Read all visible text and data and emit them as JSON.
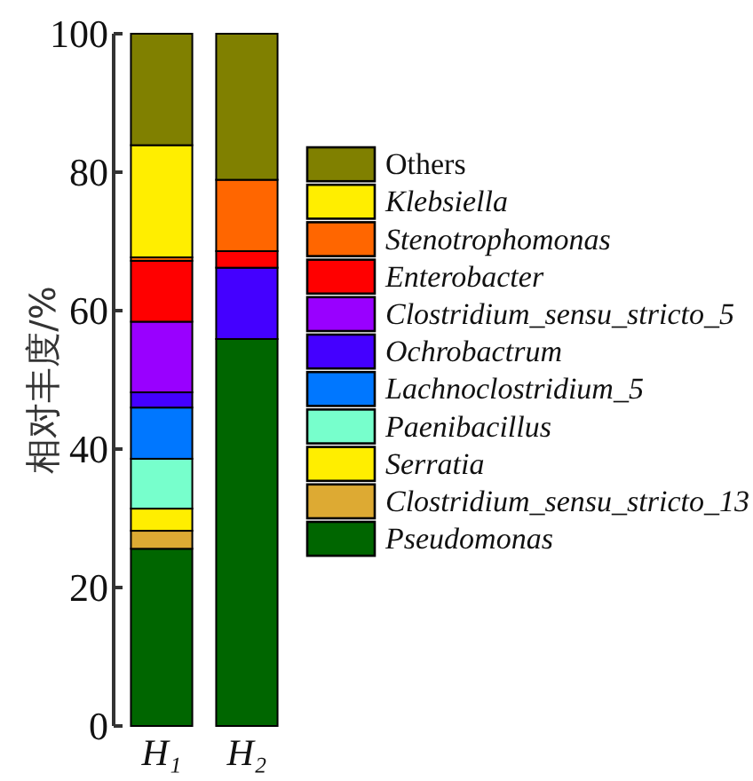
{
  "chart_data": {
    "type": "bar",
    "stacked": true,
    "ylabel": "相对丰度/%",
    "categories": [
      "H₁",
      "H₂"
    ],
    "ylim": [
      0,
      100
    ],
    "yticks": [
      0,
      20,
      40,
      60,
      80,
      100
    ],
    "legend": "right",
    "grid": false,
    "series": [
      {
        "name": "Pseudomonas",
        "color": "#006600",
        "values": [
          25.6,
          55.9
        ]
      },
      {
        "name": "Clostridium_sensu_stricto_13",
        "color": "#ddaa33",
        "values": [
          2.6,
          0
        ]
      },
      {
        "name": "Serratia",
        "color": "#ffee00",
        "values": [
          3.2,
          0
        ]
      },
      {
        "name": "Paenibacillus",
        "color": "#77ffcc",
        "values": [
          7.2,
          0
        ]
      },
      {
        "name": "Lachnoclostridium_5",
        "color": "#0077ff",
        "values": [
          7.4,
          0
        ]
      },
      {
        "name": "Ochrobactrum",
        "color": "#4400ff",
        "values": [
          2.2,
          10.3
        ]
      },
      {
        "name": "Clostridium_sensu_stricto_5",
        "color": "#9900ff",
        "values": [
          10.2,
          0
        ]
      },
      {
        "name": "Enterobacter",
        "color": "#ff0000",
        "values": [
          8.8,
          2.4
        ]
      },
      {
        "name": "Stenotrophomonas",
        "color": "#ff6600",
        "values": [
          0.5,
          10.3
        ]
      },
      {
        "name": "Klebsiella",
        "color": "#ffee00",
        "values": [
          16.2,
          0
        ]
      },
      {
        "name": "Others",
        "color": "#808000",
        "values": [
          16.1,
          21.1
        ]
      }
    ]
  }
}
